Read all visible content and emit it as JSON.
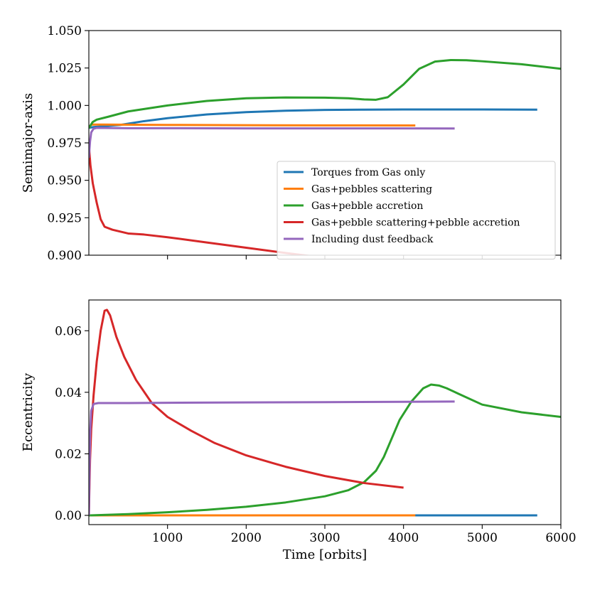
{
  "chart_data": [
    {
      "type": "line",
      "ylabel": "Semimajor-axis",
      "xlabel": "",
      "xlim": [
        0,
        6000
      ],
      "ylim": [
        0.9,
        1.05
      ],
      "x_ticks": [
        1000,
        2000,
        3000,
        4000,
        5000,
        6000
      ],
      "x_tick_labels_shown": false,
      "y_ticks": [
        0.9,
        0.925,
        0.95,
        0.975,
        1.0,
        1.025,
        1.05
      ],
      "y_tick_labels": [
        "0.900",
        "0.925",
        "0.950",
        "0.975",
        "1.000",
        "1.025",
        "1.050"
      ],
      "grid": false,
      "legend": "center-right",
      "series": [
        {
          "name": "Torques from Gas only",
          "color": "#1f77b4",
          "points": [
            [
              0,
              0.985
            ],
            [
              50,
              0.9855
            ],
            [
              200,
              0.9862
            ],
            [
              400,
              0.987
            ],
            [
              700,
              0.9895
            ],
            [
              1000,
              0.9915
            ],
            [
              1500,
              0.994
            ],
            [
              2000,
              0.9955
            ],
            [
              2500,
              0.9965
            ],
            [
              3000,
              0.997
            ],
            [
              3500,
              0.9972
            ],
            [
              4000,
              0.9973
            ],
            [
              5000,
              0.9973
            ],
            [
              5700,
              0.9972
            ]
          ]
        },
        {
          "name": "Gas+pebbles scattering",
          "color": "#ff7f0e",
          "points": [
            [
              0,
              0.985
            ],
            [
              30,
              0.9872
            ],
            [
              200,
              0.9872
            ],
            [
              1000,
              0.987
            ],
            [
              2000,
              0.9868
            ],
            [
              3000,
              0.9867
            ],
            [
              4150,
              0.9866
            ]
          ]
        },
        {
          "name": "Gas+pebble accretion",
          "color": "#2ca02c",
          "points": [
            [
              0,
              0.985
            ],
            [
              50,
              0.989
            ],
            [
              100,
              0.9905
            ],
            [
              250,
              0.9925
            ],
            [
              500,
              0.996
            ],
            [
              1000,
              1.0
            ],
            [
              1500,
              1.003
            ],
            [
              2000,
              1.0048
            ],
            [
              2500,
              1.0053
            ],
            [
              3000,
              1.0052
            ],
            [
              3300,
              1.0048
            ],
            [
              3500,
              1.004
            ],
            [
              3650,
              1.0038
            ],
            [
              3800,
              1.0055
            ],
            [
              4000,
              1.014
            ],
            [
              4200,
              1.0245
            ],
            [
              4400,
              1.0293
            ],
            [
              4600,
              1.0303
            ],
            [
              4800,
              1.0302
            ],
            [
              5000,
              1.0295
            ],
            [
              5500,
              1.0275
            ],
            [
              6000,
              1.0245
            ]
          ]
        },
        {
          "name": "Gas+pebble scattering+pebble accretion",
          "color": "#d62728",
          "points": [
            [
              0,
              0.974
            ],
            [
              20,
              0.96
            ],
            [
              50,
              0.948
            ],
            [
              100,
              0.935
            ],
            [
              150,
              0.924
            ],
            [
              200,
              0.919
            ],
            [
              300,
              0.917
            ],
            [
              500,
              0.9145
            ],
            [
              700,
              0.9138
            ],
            [
              1000,
              0.912
            ],
            [
              1500,
              0.9085
            ],
            [
              2000,
              0.905
            ],
            [
              2500,
              0.9015
            ],
            [
              2800,
              0.8995
            ]
          ]
        },
        {
          "name": "Including dust feedback",
          "color": "#9467bd",
          "points": [
            [
              0,
              0.965
            ],
            [
              15,
              0.976
            ],
            [
              30,
              0.982
            ],
            [
              60,
              0.9845
            ],
            [
              100,
              0.985
            ],
            [
              500,
              0.9848
            ],
            [
              1000,
              0.9848
            ],
            [
              2000,
              0.9847
            ],
            [
              3000,
              0.9847
            ],
            [
              4000,
              0.9847
            ],
            [
              4650,
              0.9846
            ]
          ]
        }
      ]
    },
    {
      "type": "line",
      "ylabel": "Eccentricity",
      "xlabel": "Time [orbits]",
      "xlim": [
        0,
        6000
      ],
      "ylim": [
        -0.003,
        0.07
      ],
      "x_ticks": [
        1000,
        2000,
        3000,
        4000,
        5000,
        6000
      ],
      "x_tick_labels": [
        "1000",
        "2000",
        "3000",
        "4000",
        "5000",
        "6000"
      ],
      "y_ticks": [
        0.0,
        0.02,
        0.04,
        0.06
      ],
      "y_tick_labels": [
        "0.00",
        "0.02",
        "0.04",
        "0.06"
      ],
      "grid": false,
      "series": [
        {
          "color": "#1f77b4",
          "points": [
            [
              0,
              0.0
            ],
            [
              5700,
              0.0
            ]
          ]
        },
        {
          "color": "#ff7f0e",
          "points": [
            [
              0,
              0.0
            ],
            [
              4150,
              0.0
            ]
          ]
        },
        {
          "color": "#2ca02c",
          "points": [
            [
              0,
              0.0
            ],
            [
              500,
              0.0004
            ],
            [
              1000,
              0.001
            ],
            [
              1500,
              0.0018
            ],
            [
              2000,
              0.0028
            ],
            [
              2500,
              0.0042
            ],
            [
              3000,
              0.0062
            ],
            [
              3300,
              0.0082
            ],
            [
              3500,
              0.0108
            ],
            [
              3650,
              0.0145
            ],
            [
              3750,
              0.019
            ],
            [
              3850,
              0.025
            ],
            [
              3950,
              0.031
            ],
            [
              4100,
              0.037
            ],
            [
              4250,
              0.0413
            ],
            [
              4350,
              0.0425
            ],
            [
              4450,
              0.0422
            ],
            [
              4550,
              0.0413
            ],
            [
              4700,
              0.0395
            ],
            [
              5000,
              0.036
            ],
            [
              5500,
              0.0335
            ],
            [
              6000,
              0.032
            ]
          ]
        },
        {
          "color": "#d62728",
          "points": [
            [
              0,
              0.0
            ],
            [
              15,
              0.018
            ],
            [
              30,
              0.028
            ],
            [
              60,
              0.039
            ],
            [
              100,
              0.05
            ],
            [
              150,
              0.06
            ],
            [
              200,
              0.0665
            ],
            [
              230,
              0.0668
            ],
            [
              270,
              0.065
            ],
            [
              350,
              0.058
            ],
            [
              450,
              0.0515
            ],
            [
              600,
              0.044
            ],
            [
              800,
              0.0365
            ],
            [
              1000,
              0.032
            ],
            [
              1300,
              0.0275
            ],
            [
              1600,
              0.0235
            ],
            [
              2000,
              0.0195
            ],
            [
              2500,
              0.0158
            ],
            [
              3000,
              0.0128
            ],
            [
              3500,
              0.0105
            ],
            [
              4000,
              0.009
            ]
          ]
        },
        {
          "color": "#9467bd",
          "points": [
            [
              0,
              0.0
            ],
            [
              15,
              0.026
            ],
            [
              30,
              0.034
            ],
            [
              60,
              0.0362
            ],
            [
              120,
              0.0365
            ],
            [
              500,
              0.0365
            ],
            [
              1000,
              0.0366
            ],
            [
              2000,
              0.0367
            ],
            [
              3000,
              0.0368
            ],
            [
              4000,
              0.0369
            ],
            [
              4650,
              0.037
            ]
          ]
        }
      ]
    }
  ]
}
